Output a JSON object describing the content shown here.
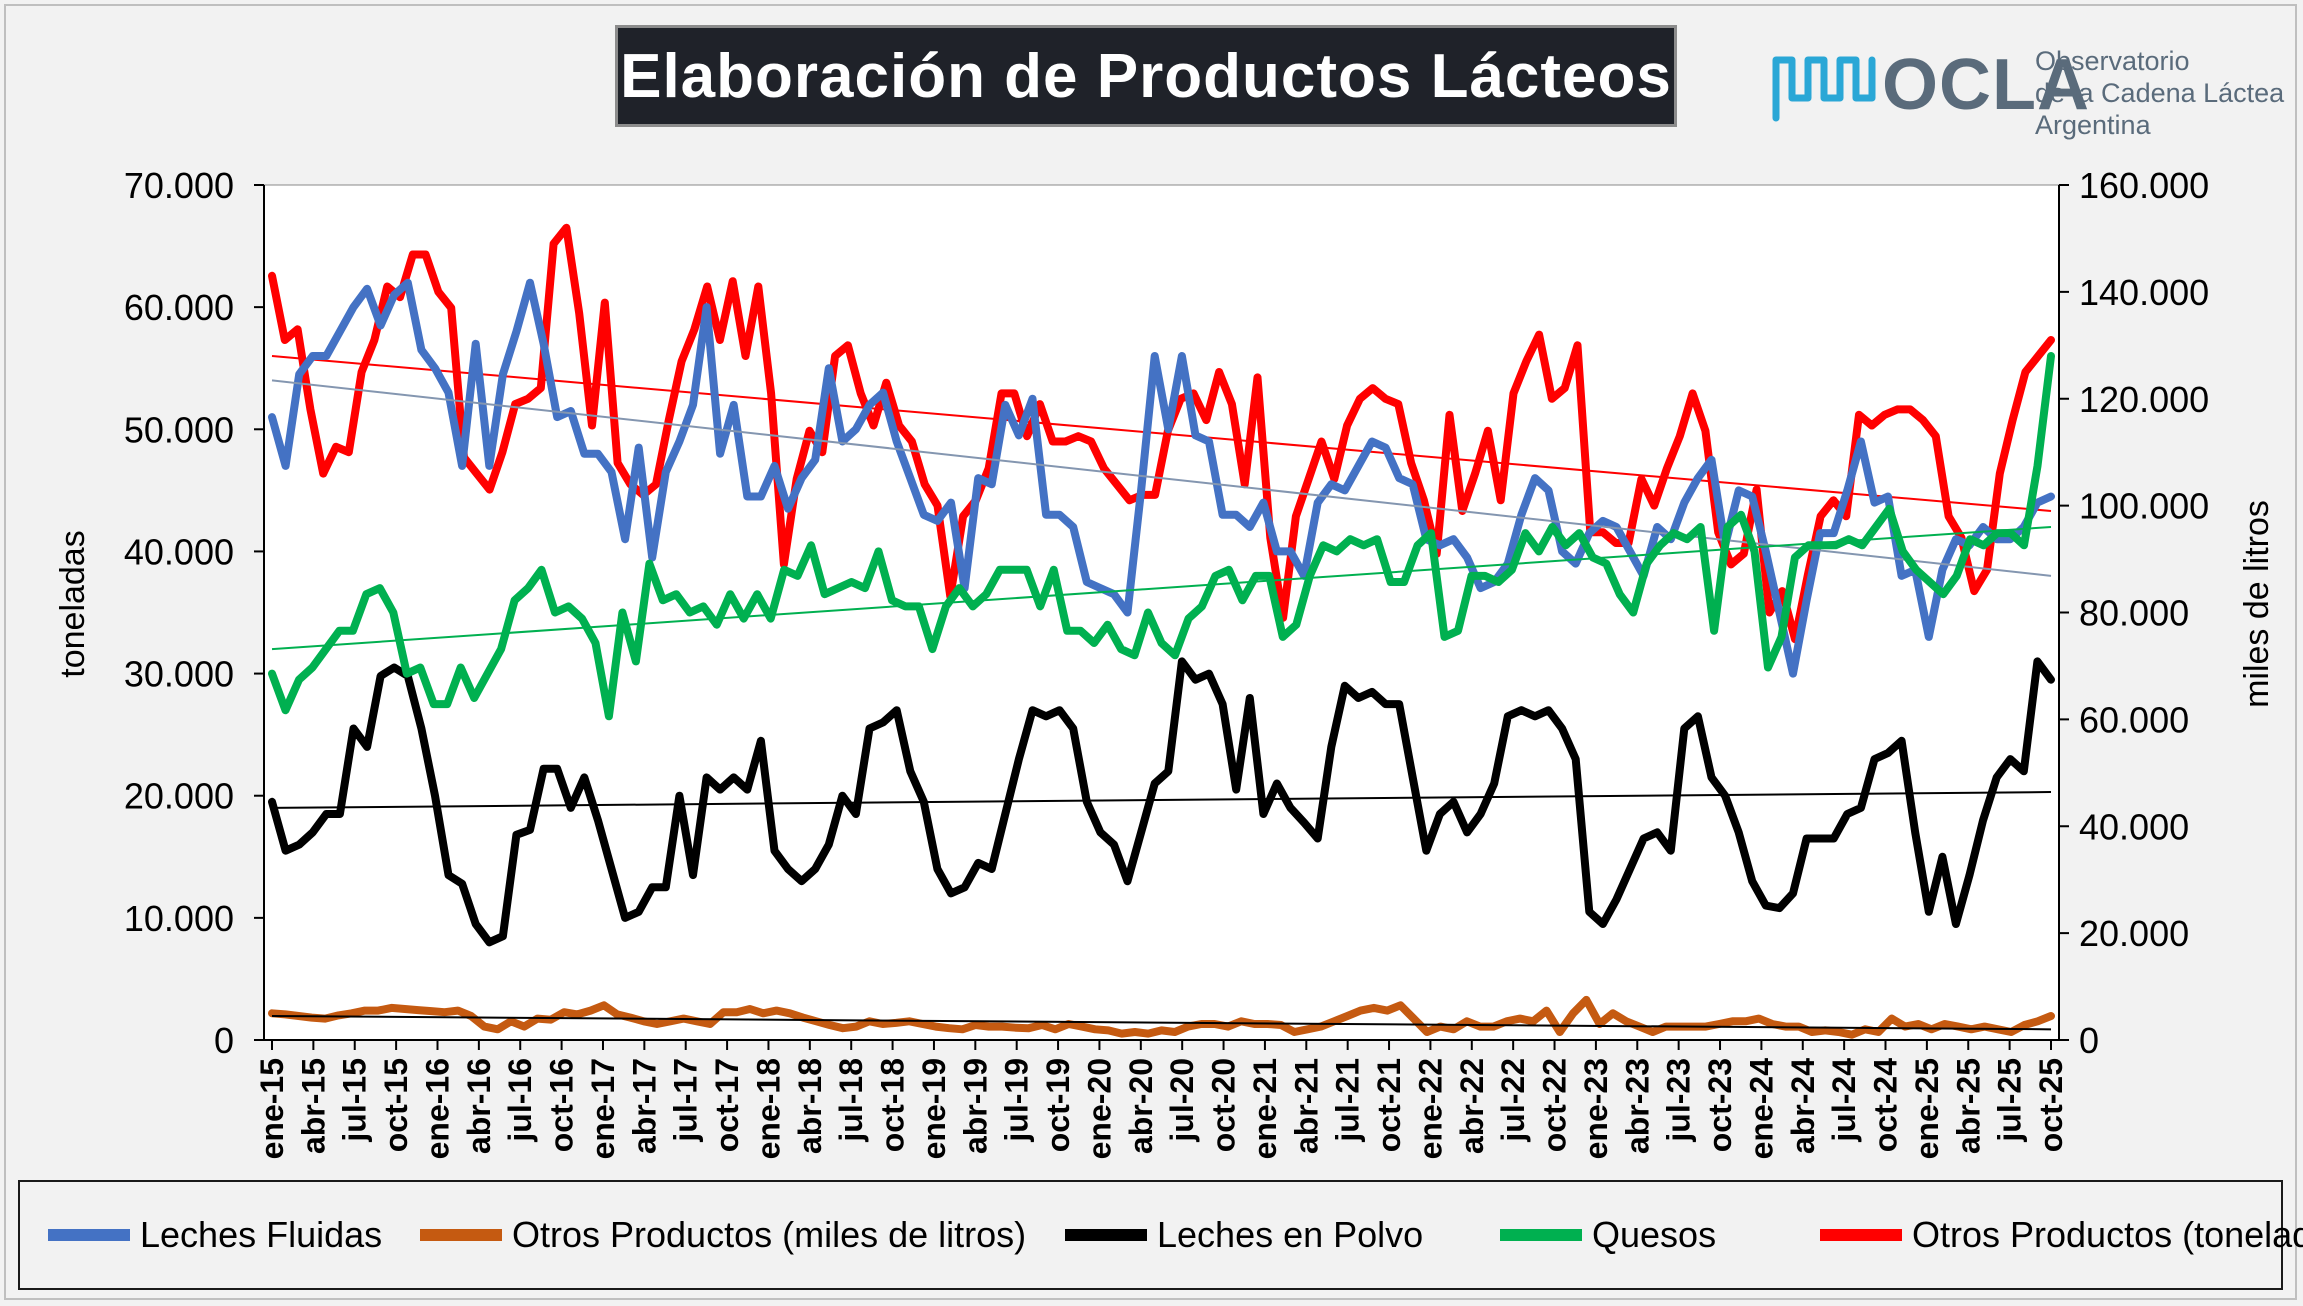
{
  "title": "Elaboración de Productos Lácteos",
  "logo": {
    "icon": "ocla-wave-logo-icon",
    "wordmark": "OCLA",
    "line1": "Observatorio",
    "line2": "de la Cadena Láctea",
    "line3": "Argentina",
    "color_blue": "#2aa7d6",
    "color_gray": "#5a6b7b"
  },
  "chart_data": {
    "type": "line",
    "title": "Elaboración de Productos Lácteos",
    "ylabel": "toneladas",
    "ylabel_right": "miles de litros",
    "ylim": [
      0,
      70000
    ],
    "ylim_right": [
      0,
      160000
    ],
    "yticks": [
      "0",
      "10.000",
      "20.000",
      "30.000",
      "40.000",
      "50.000",
      "60.000",
      "70.000"
    ],
    "yticks_right": [
      "0",
      "20.000",
      "40.000",
      "60.000",
      "80.000",
      "100.000",
      "120.000",
      "140.000",
      "160.000"
    ],
    "x_tick_labels": [
      "ene-15",
      "abr-15",
      "jul-15",
      "oct-15",
      "ene-16",
      "abr-16",
      "jul-16",
      "oct-16",
      "ene-17",
      "abr-17",
      "jul-17",
      "oct-17",
      "ene-18",
      "abr-18",
      "jul-18",
      "oct-18",
      "ene-19",
      "abr-19",
      "jul-19",
      "oct-19",
      "ene-20",
      "abr-20",
      "jul-20",
      "oct-20",
      "ene-21",
      "abr-21",
      "jul-21",
      "oct-21",
      "ene-22",
      "abr-22",
      "jul-22",
      "oct-22",
      "ene-23",
      "abr-23",
      "jul-23",
      "oct-23",
      "ene-24",
      "abr-24",
      "jul-24",
      "oct-24",
      "ene-25",
      "abr-25",
      "jul-25",
      "oct-25"
    ],
    "x_start": "ene-15",
    "x_end": "oct-25",
    "grid": false,
    "legend_position": "bottom",
    "series": [
      {
        "name": "Leches Fluidas",
        "color": "#4472c4",
        "axis": "left",
        "trend": [
          54000,
          38000
        ],
        "values": [
          51000,
          47000,
          54500,
          56000,
          56000,
          58000,
          60000,
          61500,
          58500,
          61000,
          62000,
          56500,
          55000,
          53000,
          47000,
          57000,
          47000,
          54500,
          58000,
          62000,
          57000,
          51000,
          51500,
          48000,
          48000,
          46500,
          41000,
          48500,
          39500,
          46500,
          49000,
          52000,
          60000,
          48000,
          52000,
          44500,
          44500,
          47000,
          43500,
          46000,
          47500,
          55000,
          49000,
          50000,
          52000,
          53000,
          49000,
          46000,
          43000,
          42500,
          44000,
          37000,
          46000,
          45500,
          52000,
          49500,
          52500,
          43000,
          43000,
          42000,
          37500,
          37000,
          36500,
          35000,
          45000,
          56000,
          50000,
          56000,
          49500,
          49000,
          43000,
          43000,
          42000,
          44000,
          40000,
          40000,
          38000,
          44000,
          45500,
          45000,
          47000,
          49000,
          48500,
          46000,
          45500,
          41000,
          40500,
          41000,
          39500,
          37000,
          37500,
          39000,
          43000,
          46000,
          45000,
          40000,
          39000,
          41500,
          42500,
          42000,
          40000,
          38000,
          42000,
          41000,
          44000,
          46000,
          47500,
          40500,
          45000,
          44500,
          40000,
          35000,
          30000,
          36000,
          41500,
          41500,
          45000,
          49000,
          44000,
          44500,
          38000,
          38500,
          33000,
          38500,
          41000,
          40500,
          42000,
          41000,
          41000,
          42000,
          44000,
          44500
        ]
      },
      {
        "name": "Otros Productos (miles de litros)",
        "color": "#c55a11",
        "axis": "right",
        "trend": [
          4500,
          2000
        ],
        "values": [
          5000,
          4800,
          4500,
          4200,
          4000,
          4600,
          5000,
          5500,
          5500,
          6000,
          5800,
          5600,
          5400,
          5200,
          5500,
          4500,
          2500,
          2000,
          3500,
          2500,
          4000,
          3800,
          5200,
          4800,
          5500,
          6500,
          4800,
          4200,
          3500,
          3000,
          3500,
          4000,
          3500,
          3000,
          5200,
          5200,
          5800,
          5000,
          5500,
          5000,
          4200,
          3500,
          2800,
          2200,
          2500,
          3500,
          3000,
          3200,
          3500,
          3000,
          2500,
          2200,
          2000,
          2800,
          2500,
          2500,
          2300,
          2200,
          2800,
          2000,
          3000,
          2500,
          2000,
          1800,
          1200,
          1500,
          1200,
          1800,
          1500,
          2500,
          3000,
          3000,
          2500,
          3500,
          3000,
          3000,
          2800,
          1500,
          2000,
          2500,
          3500,
          4500,
          5500,
          6000,
          5500,
          6500,
          4000,
          1500,
          2500,
          2000,
          3500,
          2500,
          2500,
          3500,
          4000,
          3500,
          5500,
          1500,
          5000,
          7500,
          3000,
          5000,
          3500,
          2500,
          1500,
          2500,
          2500,
          2500,
          2500,
          3000,
          3500,
          3500,
          4000,
          3000,
          2500,
          2500,
          1500,
          1800,
          1500,
          1000,
          2000,
          1500,
          4000,
          2500,
          3000,
          2000,
          3000,
          2500,
          2000,
          2500,
          2000,
          1500,
          2800,
          3500,
          4500
        ]
      },
      {
        "name": "Leches en Polvo",
        "color": "#000000",
        "axis": "left",
        "trend": [
          19000,
          20300
        ],
        "values": [
          19500,
          15500,
          16000,
          17000,
          18500,
          18500,
          25500,
          24000,
          29800,
          30500,
          29800,
          25500,
          20000,
          13500,
          12800,
          9500,
          8000,
          8500,
          16800,
          17200,
          22200,
          22200,
          19000,
          21500,
          18000,
          14000,
          10000,
          10500,
          12500,
          12500,
          20000,
          13500,
          21500,
          20500,
          21500,
          20500,
          24500,
          15500,
          14000,
          13000,
          14000,
          16000,
          20000,
          18500,
          25500,
          26000,
          27000,
          22000,
          19500,
          14000,
          12000,
          12500,
          14500,
          14000,
          18500,
          23000,
          27000,
          26500,
          27000,
          25500,
          19500,
          17000,
          16000,
          13000,
          17000,
          21000,
          22000,
          31000,
          29500,
          30000,
          27500,
          20500,
          28000,
          18500,
          21000,
          19000,
          17800,
          16500,
          24000,
          29000,
          28000,
          28500,
          27500,
          27500,
          21500,
          15500,
          18500,
          19500,
          17000,
          18500,
          21000,
          26500,
          27000,
          26500,
          27000,
          25500,
          23000,
          10500,
          9500,
          11500,
          14000,
          16500,
          17000,
          15500,
          25500,
          26500,
          21500,
          20000,
          17000,
          13000,
          11000,
          10800,
          12000,
          16500,
          16500,
          16500,
          18500,
          19000,
          23000,
          23500,
          24500,
          17000,
          10500,
          15000,
          9500,
          13500,
          18000,
          21500,
          23000,
          22000,
          31000,
          29500
        ]
      },
      {
        "name": "Quesos",
        "color": "#00b050",
        "axis": "left",
        "trend": [
          32000,
          42000
        ],
        "values": [
          30000,
          27000,
          29500,
          30500,
          32000,
          33500,
          33500,
          36500,
          37000,
          35000,
          30000,
          30500,
          27500,
          27500,
          30500,
          28000,
          30000,
          32000,
          36000,
          37000,
          38500,
          35000,
          35500,
          34500,
          32500,
          26500,
          35000,
          31000,
          39000,
          36000,
          36500,
          35000,
          35500,
          34000,
          36500,
          34500,
          36500,
          34500,
          38500,
          38000,
          40500,
          36500,
          37000,
          37500,
          37000,
          40000,
          36000,
          35500,
          35500,
          32000,
          35500,
          37000,
          35500,
          36500,
          38500,
          38500,
          38500,
          35500,
          38500,
          33500,
          33500,
          32500,
          34000,
          32000,
          31500,
          35000,
          32500,
          31500,
          34500,
          35500,
          38000,
          38500,
          36000,
          38000,
          38000,
          33000,
          34000,
          38000,
          40500,
          40000,
          41000,
          40500,
          41000,
          37500,
          37500,
          40500,
          41500,
          33000,
          33500,
          38000,
          38000,
          37500,
          38500,
          41500,
          40000,
          42000,
          40500,
          41500,
          39500,
          39000,
          36500,
          35000,
          39000,
          40500,
          41500,
          41000,
          42000,
          33500,
          42000,
          43000,
          40000,
          30500,
          33000,
          39500,
          40500,
          40500,
          40500,
          41000,
          40500,
          42000,
          43500,
          40000,
          38500,
          37500,
          36500,
          38000,
          41000,
          40500,
          41500,
          41500,
          40500,
          47000,
          56000
        ]
      },
      {
        "name": "Otros Productos (toneladas)",
        "color": "#ff0000",
        "axis": "right",
        "trend": [
          128000,
          99000
        ],
        "values": [
          143000,
          131000,
          133000,
          118000,
          106000,
          111000,
          110000,
          125000,
          131000,
          141000,
          139000,
          147000,
          147000,
          140000,
          137000,
          109000,
          106000,
          103000,
          110000,
          119000,
          120000,
          122000,
          149000,
          152000,
          136000,
          115000,
          138000,
          108000,
          104000,
          102000,
          104000,
          116000,
          127000,
          133000,
          141000,
          131000,
          142000,
          128000,
          141000,
          121000,
          89000,
          105000,
          114000,
          110000,
          128000,
          130000,
          121000,
          115000,
          123000,
          115000,
          112000,
          104000,
          100000,
          83000,
          98000,
          101000,
          107000,
          121000,
          121000,
          113000,
          119000,
          112000,
          112000,
          113000,
          112000,
          107000,
          104000,
          101000,
          102000,
          102000,
          114000,
          120000,
          121000,
          116000,
          125000,
          119000,
          104000,
          124000,
          94000,
          79000,
          98000,
          105000,
          112000,
          105000,
          115000,
          120000,
          122000,
          120000,
          119000,
          108000,
          101000,
          91000,
          117000,
          99000,
          106000,
          114000,
          101000,
          121000,
          127000,
          132000,
          120000,
          122000,
          130000,
          95000,
          95000,
          93000,
          93000,
          105000,
          100000,
          107000,
          113000,
          121000,
          114000,
          95000,
          89000,
          91000,
          103000,
          80000,
          84000,
          75000,
          87000,
          98000,
          101000,
          98000,
          117000,
          115000,
          117000,
          118000,
          118000,
          116000,
          113000,
          98000,
          94000,
          84000,
          88000,
          106000,
          116000,
          125000,
          128000,
          131000
        ]
      }
    ]
  }
}
